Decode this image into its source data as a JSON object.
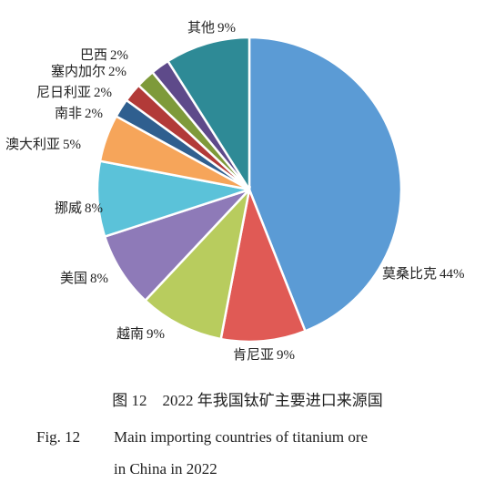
{
  "chart_data": {
    "type": "pie",
    "categories": [
      "莫桑比克",
      "肯尼亚",
      "越南",
      "美国",
      "挪威",
      "澳大利亚",
      "南非",
      "尼日利亚",
      "塞内加尔",
      "巴西",
      "其他"
    ],
    "values": [
      44,
      9,
      9,
      8,
      8,
      5,
      2,
      2,
      2,
      2,
      9
    ],
    "value_labels": [
      "44%",
      "9%",
      "9%",
      "8%",
      "8%",
      "5%",
      "2%",
      "2%",
      "2%",
      "2%",
      "9%"
    ],
    "colors": [
      "#5b9bd5",
      "#e05a55",
      "#b8cc5e",
      "#8e7ab8",
      "#5bc2d9",
      "#f6a55a",
      "#2f5f8f",
      "#b23a38",
      "#7e9a3a",
      "#5e4a8a",
      "#2e8a96"
    ],
    "caption": "图 12　2022 年我国钛矿主要进口来源国",
    "caption_en_number": "Fig. 12",
    "caption_en": [
      "Main importing countries of titanium ore",
      "in China in 2022"
    ]
  }
}
